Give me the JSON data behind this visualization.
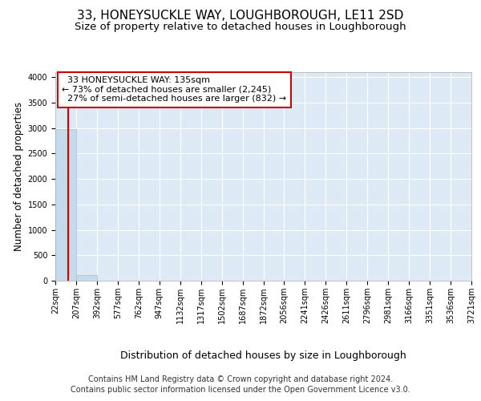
{
  "title": "33, HONEYSUCKLE WAY, LOUGHBOROUGH, LE11 2SD",
  "subtitle": "Size of property relative to detached houses in Loughborough",
  "xlabel": "Distribution of detached houses by size in Loughborough",
  "ylabel": "Number of detached properties",
  "footer_line1": "Contains HM Land Registry data © Crown copyright and database right 2024.",
  "footer_line2": "Contains public sector information licensed under the Open Government Licence v3.0.",
  "bin_edges": [
    22,
    207,
    392,
    577,
    762,
    947,
    1132,
    1317,
    1502,
    1687,
    1872,
    2056,
    2241,
    2426,
    2611,
    2796,
    2981,
    3166,
    3351,
    3536,
    3721
  ],
  "bin_labels": [
    "22sqm",
    "207sqm",
    "392sqm",
    "577sqm",
    "762sqm",
    "947sqm",
    "1132sqm",
    "1317sqm",
    "1502sqm",
    "1687sqm",
    "1872sqm",
    "2056sqm",
    "2241sqm",
    "2426sqm",
    "2611sqm",
    "2796sqm",
    "2981sqm",
    "3166sqm",
    "3351sqm",
    "3536sqm",
    "3721sqm"
  ],
  "bar_heights": [
    2985,
    110,
    3,
    1,
    0,
    0,
    0,
    0,
    0,
    0,
    0,
    0,
    0,
    0,
    0,
    0,
    0,
    0,
    0,
    0
  ],
  "bar_color": "#c5daea",
  "bar_edge_color": "#a0bfd4",
  "property_size": 135,
  "property_label": "33 HONEYSUCKLE WAY: 135sqm",
  "pct_smaller": 73,
  "count_smaller": 2245,
  "pct_larger": 27,
  "count_larger": 832,
  "vline_color": "#cc0000",
  "annotation_box_color": "#cc0000",
  "ylim": [
    0,
    4100
  ],
  "yticks": [
    0,
    500,
    1000,
    1500,
    2000,
    2500,
    3000,
    3500,
    4000
  ],
  "axes_bg_color": "#ddeaf5",
  "fig_bg_color": "#ffffff",
  "grid_color": "#ffffff",
  "title_fontsize": 11,
  "subtitle_fontsize": 9.5,
  "xlabel_fontsize": 9,
  "ylabel_fontsize": 8.5,
  "tick_fontsize": 7,
  "annotation_fontsize": 8,
  "footer_fontsize": 7
}
